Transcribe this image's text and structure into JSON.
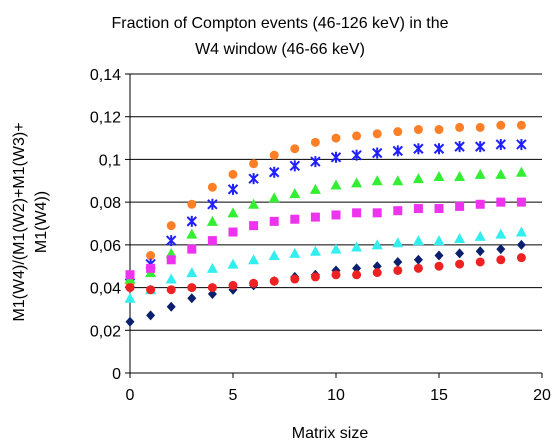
{
  "chart_data": {
    "type": "scatter",
    "title_lines": [
      "Fraction of Compton events (46-126 keV) in the",
      "W4 window (46-66 keV)"
    ],
    "xlabel": "Matrix size",
    "ylabel_lines": [
      "M1(W4)/(M1(W2)+M1(W3)+",
      "M1(W4))"
    ],
    "xlim": [
      0,
      20
    ],
    "ylim": [
      0,
      0.14
    ],
    "xticks": [
      0,
      5,
      10,
      15,
      20
    ],
    "xtick_labels": [
      "0",
      "5",
      "10",
      "15",
      "20"
    ],
    "yticks": [
      0,
      0.02,
      0.04,
      0.06,
      0.08,
      0.1,
      0.12,
      0.14
    ],
    "ytick_labels": [
      "0",
      "0,02",
      "0,04",
      "0,06",
      "0,08",
      "0,1",
      "0,12",
      "0,14"
    ],
    "grid": "horizontal",
    "legend": "none",
    "x": [
      0,
      1,
      2,
      3,
      4,
      5,
      6,
      7,
      8,
      9,
      10,
      11,
      12,
      13,
      14,
      15,
      16,
      17,
      18,
      19
    ],
    "series": [
      {
        "marker": "circle",
        "color": "#ff7f27",
        "values": [
          0.042,
          0.055,
          0.069,
          0.079,
          0.087,
          0.093,
          0.098,
          0.102,
          0.105,
          0.108,
          0.11,
          0.111,
          0.112,
          0.113,
          0.114,
          0.114,
          0.115,
          0.115,
          0.116,
          0.116
        ]
      },
      {
        "marker": "asterisk",
        "color": "#1f1fff",
        "values": [
          0.042,
          0.051,
          0.062,
          0.071,
          0.079,
          0.086,
          0.091,
          0.094,
          0.097,
          0.099,
          0.101,
          0.102,
          0.103,
          0.104,
          0.105,
          0.105,
          0.106,
          0.106,
          0.107,
          0.107
        ]
      },
      {
        "marker": "triangle",
        "color": "#33ee33",
        "values": [
          0.044,
          0.047,
          0.056,
          0.065,
          0.071,
          0.075,
          0.079,
          0.082,
          0.084,
          0.086,
          0.088,
          0.089,
          0.09,
          0.09,
          0.091,
          0.092,
          0.092,
          0.093,
          0.093,
          0.094
        ]
      },
      {
        "marker": "square",
        "color": "#ee33ee",
        "values": [
          0.046,
          0.049,
          0.053,
          0.058,
          0.062,
          0.066,
          0.069,
          0.071,
          0.072,
          0.073,
          0.074,
          0.075,
          0.075,
          0.076,
          0.077,
          0.077,
          0.078,
          0.079,
          0.08,
          0.08
        ]
      },
      {
        "marker": "triangle",
        "color": "#33eeee",
        "values": [
          0.035,
          0.039,
          0.044,
          0.047,
          0.049,
          0.051,
          0.053,
          0.055,
          0.056,
          0.057,
          0.058,
          0.059,
          0.06,
          0.061,
          0.062,
          0.062,
          0.063,
          0.064,
          0.065,
          0.066
        ]
      },
      {
        "marker": "diamond",
        "color": "#0a1f6e",
        "values": [
          0.024,
          0.027,
          0.031,
          0.035,
          0.037,
          0.039,
          0.041,
          0.043,
          0.045,
          0.046,
          0.048,
          0.049,
          0.05,
          0.052,
          0.053,
          0.055,
          0.056,
          0.057,
          0.058,
          0.06
        ]
      },
      {
        "marker": "circle",
        "color": "#ee2222",
        "values": [
          0.04,
          0.039,
          0.039,
          0.04,
          0.04,
          0.041,
          0.042,
          0.043,
          0.044,
          0.045,
          0.046,
          0.046,
          0.047,
          0.048,
          0.049,
          0.05,
          0.051,
          0.052,
          0.053,
          0.054
        ]
      }
    ]
  }
}
